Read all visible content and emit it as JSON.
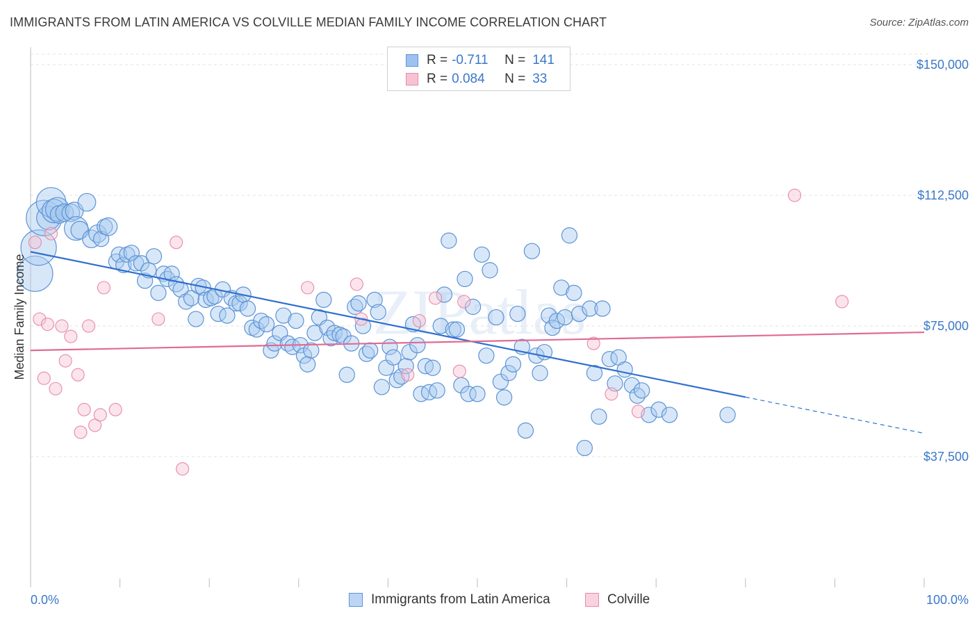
{
  "title": "IMMIGRANTS FROM LATIN AMERICA VS COLVILLE MEDIAN FAMILY INCOME CORRELATION CHART",
  "source": "Source: ZipAtlas.com",
  "watermark": "ZIPatlas",
  "legend_top": {
    "rows": [
      {
        "r_label": "R =",
        "r_value": "-0.711",
        "n_label": "N =",
        "n_value": "141",
        "color": "#9ec2ef",
        "border": "#5b93d6"
      },
      {
        "r_label": "R =",
        "r_value": "0.084",
        "n_label": "N =",
        "n_value": "33",
        "color": "#f7c3d3",
        "border": "#e68aa8"
      }
    ]
  },
  "legend_bottom": [
    {
      "label": "Immigrants from Latin America",
      "color": "#bcd5f5",
      "border": "#5b93d6"
    },
    {
      "label": "Colville",
      "color": "#f9d2de",
      "border": "#e68aa8"
    }
  ],
  "chart_data": {
    "type": "scatter",
    "title": "IMMIGRANTS FROM LATIN AMERICA VS COLVILLE MEDIAN FAMILY INCOME CORRELATION CHART",
    "xlabel": "",
    "ylabel": "Median Family Income",
    "xlim": [
      0,
      100
    ],
    "ylim": [
      0,
      153000
    ],
    "x_tick_labels": [
      "0.0%",
      "100.0%"
    ],
    "y_ticks": [
      37500,
      75000,
      112500,
      150000
    ],
    "y_tick_labels": [
      "$37,500",
      "$75,000",
      "$112,500",
      "$150,000"
    ],
    "grid": true,
    "legend_placement": "top-center",
    "series": [
      {
        "name": "Immigrants from Latin America",
        "color": "#5b93d6",
        "fill": "#a9c9f0",
        "r": -0.711,
        "n": 141,
        "trend": {
          "x0": 0,
          "y0": 96300,
          "x1": 80,
          "y1": 54600,
          "dash_to_x": 100,
          "dash_to_y": 44200
        },
        "points": [
          [
            0.5,
            90000,
            3
          ],
          [
            0.9,
            97500,
            3
          ],
          [
            1.5,
            106000,
            3
          ],
          [
            2.0,
            106000,
            2
          ],
          [
            2.3,
            110500,
            2.5
          ],
          [
            2.6,
            108000,
            2
          ],
          [
            3.0,
            108500,
            2
          ],
          [
            3.2,
            107000,
            1.5
          ],
          [
            3.8,
            107500,
            1.5
          ],
          [
            4.5,
            107500,
            1.5
          ],
          [
            4.9,
            108000,
            1.5
          ],
          [
            5.1,
            103000,
            2
          ],
          [
            5.5,
            102500,
            1.5
          ],
          [
            6.3,
            110500,
            1.5
          ],
          [
            6.8,
            100000,
            1.5
          ],
          [
            7.5,
            101500,
            1.5
          ],
          [
            7.9,
            100000,
            1.3
          ],
          [
            8.3,
            103500,
            1.3
          ],
          [
            8.7,
            103500,
            1.5
          ],
          [
            9.6,
            93500,
            1.3
          ],
          [
            9.9,
            95500,
            1.3
          ],
          [
            10.4,
            92500,
            1.3
          ],
          [
            10.8,
            95500,
            1.3
          ],
          [
            11.3,
            96000,
            1.3
          ],
          [
            11.8,
            93000,
            1.3
          ],
          [
            12.4,
            93000,
            1.3
          ],
          [
            12.8,
            88000,
            1.3
          ],
          [
            13.2,
            91000,
            1.3
          ],
          [
            13.8,
            95000,
            1.3
          ],
          [
            14.3,
            84500,
            1.3
          ],
          [
            14.9,
            90000,
            1.3
          ],
          [
            15.3,
            88500,
            1.3
          ],
          [
            15.8,
            90000,
            1.3
          ],
          [
            16.3,
            87000,
            1.3
          ],
          [
            16.8,
            85500,
            1.3
          ],
          [
            17.4,
            82000,
            1.3
          ],
          [
            18.0,
            83000,
            1.3
          ],
          [
            18.5,
            77000,
            1.3
          ],
          [
            18.8,
            86500,
            1.3
          ],
          [
            19.3,
            86000,
            1.3
          ],
          [
            19.6,
            82500,
            1.3
          ],
          [
            20.2,
            83000,
            1.3
          ],
          [
            20.6,
            83500,
            1.3
          ],
          [
            21.0,
            78500,
            1.3
          ],
          [
            21.5,
            85500,
            1.3
          ],
          [
            22.0,
            78000,
            1.3
          ],
          [
            22.5,
            83000,
            1.3
          ],
          [
            23.0,
            81500,
            1.3
          ],
          [
            23.4,
            81500,
            1.3
          ],
          [
            23.8,
            84000,
            1.3
          ],
          [
            24.3,
            80000,
            1.3
          ],
          [
            24.8,
            74500,
            1.3
          ],
          [
            25.3,
            74000,
            1.3
          ],
          [
            25.8,
            76500,
            1.3
          ],
          [
            26.4,
            75500,
            1.3
          ],
          [
            26.9,
            68000,
            1.3
          ],
          [
            27.3,
            70000,
            1.3
          ],
          [
            27.9,
            73000,
            1.3
          ],
          [
            28.3,
            78000,
            1.3
          ],
          [
            28.8,
            70000,
            1.3
          ],
          [
            29.3,
            69000,
            1.3
          ],
          [
            29.7,
            76500,
            1.3
          ],
          [
            30.2,
            69500,
            1.3
          ],
          [
            30.6,
            66500,
            1.3
          ],
          [
            31.0,
            64000,
            1.3
          ],
          [
            31.4,
            68000,
            1.3
          ],
          [
            31.8,
            73000,
            1.3
          ],
          [
            32.3,
            77500,
            1.3
          ],
          [
            32.8,
            82500,
            1.3
          ],
          [
            33.2,
            74500,
            1.3
          ],
          [
            33.6,
            71500,
            1.3
          ],
          [
            34.0,
            73000,
            1.3
          ],
          [
            34.6,
            72500,
            1.3
          ],
          [
            35.0,
            72000,
            1.3
          ],
          [
            35.4,
            61000,
            1.3
          ],
          [
            35.9,
            70000,
            1.3
          ],
          [
            36.3,
            80500,
            1.3
          ],
          [
            36.7,
            81500,
            1.3
          ],
          [
            37.2,
            75000,
            1.3
          ],
          [
            37.6,
            67000,
            1.3
          ],
          [
            38.0,
            68000,
            1.3
          ],
          [
            38.5,
            82500,
            1.3
          ],
          [
            38.9,
            79000,
            1.3
          ],
          [
            39.3,
            57500,
            1.3
          ],
          [
            39.8,
            63000,
            1.3
          ],
          [
            40.2,
            69000,
            1.3
          ],
          [
            40.6,
            66000,
            1.3
          ],
          [
            41.0,
            59500,
            1.3
          ],
          [
            41.5,
            60500,
            1.3
          ],
          [
            42.0,
            63500,
            1.3
          ],
          [
            42.4,
            67500,
            1.3
          ],
          [
            42.8,
            75500,
            1.3
          ],
          [
            43.3,
            69500,
            1.3
          ],
          [
            43.7,
            55500,
            1.3
          ],
          [
            44.2,
            63500,
            1.3
          ],
          [
            44.6,
            56000,
            1.3
          ],
          [
            45.0,
            63000,
            1.3
          ],
          [
            45.5,
            56500,
            1.3
          ],
          [
            45.9,
            75000,
            1.3
          ],
          [
            46.3,
            84000,
            1.3
          ],
          [
            46.8,
            99500,
            1.3
          ],
          [
            47.3,
            74000,
            1.3
          ],
          [
            47.7,
            74000,
            1.3
          ],
          [
            48.2,
            58000,
            1.3
          ],
          [
            48.6,
            88500,
            1.3
          ],
          [
            49.0,
            55500,
            1.3
          ],
          [
            49.5,
            80500,
            1.3
          ],
          [
            50.0,
            55500,
            1.3
          ],
          [
            50.5,
            95500,
            1.3
          ],
          [
            51.0,
            66500,
            1.3
          ],
          [
            51.4,
            91000,
            1.3
          ],
          [
            52.1,
            77500,
            1.3
          ],
          [
            52.6,
            59000,
            1.3
          ],
          [
            53.0,
            54500,
            1.3
          ],
          [
            53.5,
            61500,
            1.3
          ],
          [
            54.0,
            64000,
            1.3
          ],
          [
            54.5,
            78500,
            1.3
          ],
          [
            55.0,
            69000,
            1.3
          ],
          [
            55.4,
            45000,
            1.3
          ],
          [
            56.1,
            96500,
            1.3
          ],
          [
            56.6,
            66500,
            1.3
          ],
          [
            57.0,
            61500,
            1.3
          ],
          [
            57.5,
            67500,
            1.3
          ],
          [
            58.0,
            78000,
            1.3
          ],
          [
            58.4,
            74500,
            1.3
          ],
          [
            58.9,
            76500,
            1.3
          ],
          [
            59.4,
            86000,
            1.3
          ],
          [
            59.8,
            77500,
            1.3
          ],
          [
            60.3,
            101000,
            1.3
          ],
          [
            60.8,
            84500,
            1.3
          ],
          [
            61.4,
            78500,
            1.3
          ],
          [
            62.0,
            40000,
            1.3
          ],
          [
            62.6,
            80000,
            1.3
          ],
          [
            63.1,
            61500,
            1.3
          ],
          [
            63.6,
            49000,
            1.3
          ],
          [
            64.0,
            80000,
            1.3
          ],
          [
            64.8,
            65500,
            1.3
          ],
          [
            65.4,
            58500,
            1.3
          ],
          [
            65.8,
            66000,
            1.3
          ],
          [
            66.5,
            62500,
            1.3
          ],
          [
            67.3,
            58000,
            1.3
          ],
          [
            67.9,
            55000,
            1.3
          ],
          [
            68.4,
            56500,
            1.3
          ],
          [
            69.2,
            49500,
            1.3
          ],
          [
            70.3,
            51000,
            1.3
          ],
          [
            71.5,
            49500,
            1.3
          ],
          [
            78.0,
            49500,
            1.3
          ]
        ]
      },
      {
        "name": "Colville",
        "color": "#e68aa8",
        "fill": "#f7c3d3",
        "r": 0.084,
        "n": 33,
        "trend": {
          "x0": 0,
          "y0": 68000,
          "x1": 100,
          "y1": 73200
        },
        "points": [
          [
            0.5,
            99000
          ],
          [
            1.0,
            77000
          ],
          [
            1.5,
            60000
          ],
          [
            1.9,
            75500
          ],
          [
            2.3,
            101500
          ],
          [
            2.8,
            57000
          ],
          [
            3.5,
            75000
          ],
          [
            3.9,
            65000
          ],
          [
            4.5,
            72000
          ],
          [
            5.3,
            61000
          ],
          [
            5.6,
            44500
          ],
          [
            6.0,
            51000
          ],
          [
            6.5,
            75000
          ],
          [
            7.2,
            46500
          ],
          [
            7.8,
            49500
          ],
          [
            8.2,
            86000
          ],
          [
            9.5,
            51000
          ],
          [
            14.3,
            77000
          ],
          [
            16.3,
            99000
          ],
          [
            17.0,
            34000
          ],
          [
            31.0,
            86000
          ],
          [
            36.5,
            87000
          ],
          [
            37.0,
            77000
          ],
          [
            42.2,
            61000
          ],
          [
            43.5,
            76500
          ],
          [
            45.3,
            83000
          ],
          [
            48.0,
            62000
          ],
          [
            48.5,
            82000
          ],
          [
            63.0,
            70000
          ],
          [
            65.0,
            55500
          ],
          [
            68.0,
            50500
          ],
          [
            85.5,
            112500
          ],
          [
            90.8,
            82000
          ]
        ]
      }
    ]
  }
}
